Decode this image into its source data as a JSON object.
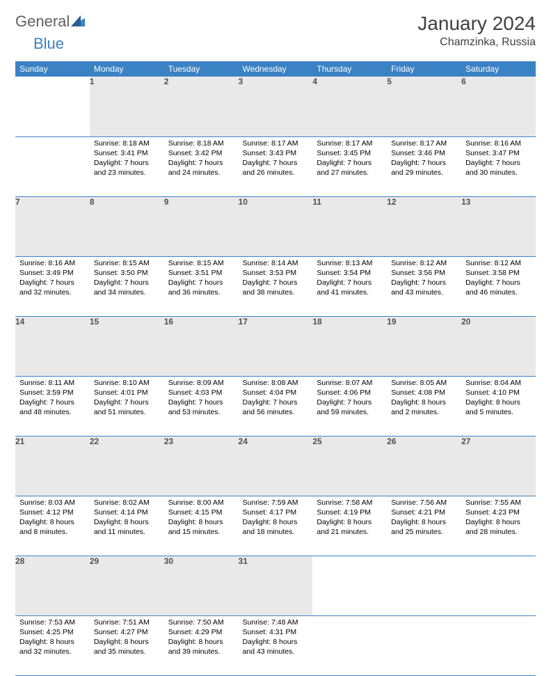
{
  "logo": {
    "word1": "General",
    "word2": "Blue"
  },
  "title": {
    "month_year": "January 2024",
    "location": "Chamzinka, Russia"
  },
  "colors": {
    "header_bg": "#3b82c4",
    "header_fg": "#ffffff",
    "daynum_bg": "#e9e9e9",
    "border": "#3b82c4",
    "logo_gray": "#606060",
    "logo_blue": "#3b82c4"
  },
  "day_headers": [
    "Sunday",
    "Monday",
    "Tuesday",
    "Wednesday",
    "Thursday",
    "Friday",
    "Saturday"
  ],
  "weeks": [
    [
      {
        "num": "",
        "sunrise": "",
        "sunset": "",
        "daylight1": "",
        "daylight2": ""
      },
      {
        "num": "1",
        "sunrise": "Sunrise: 8:18 AM",
        "sunset": "Sunset: 3:41 PM",
        "daylight1": "Daylight: 7 hours",
        "daylight2": "and 23 minutes."
      },
      {
        "num": "2",
        "sunrise": "Sunrise: 8:18 AM",
        "sunset": "Sunset: 3:42 PM",
        "daylight1": "Daylight: 7 hours",
        "daylight2": "and 24 minutes."
      },
      {
        "num": "3",
        "sunrise": "Sunrise: 8:17 AM",
        "sunset": "Sunset: 3:43 PM",
        "daylight1": "Daylight: 7 hours",
        "daylight2": "and 26 minutes."
      },
      {
        "num": "4",
        "sunrise": "Sunrise: 8:17 AM",
        "sunset": "Sunset: 3:45 PM",
        "daylight1": "Daylight: 7 hours",
        "daylight2": "and 27 minutes."
      },
      {
        "num": "5",
        "sunrise": "Sunrise: 8:17 AM",
        "sunset": "Sunset: 3:46 PM",
        "daylight1": "Daylight: 7 hours",
        "daylight2": "and 29 minutes."
      },
      {
        "num": "6",
        "sunrise": "Sunrise: 8:16 AM",
        "sunset": "Sunset: 3:47 PM",
        "daylight1": "Daylight: 7 hours",
        "daylight2": "and 30 minutes."
      }
    ],
    [
      {
        "num": "7",
        "sunrise": "Sunrise: 8:16 AM",
        "sunset": "Sunset: 3:49 PM",
        "daylight1": "Daylight: 7 hours",
        "daylight2": "and 32 minutes."
      },
      {
        "num": "8",
        "sunrise": "Sunrise: 8:15 AM",
        "sunset": "Sunset: 3:50 PM",
        "daylight1": "Daylight: 7 hours",
        "daylight2": "and 34 minutes."
      },
      {
        "num": "9",
        "sunrise": "Sunrise: 8:15 AM",
        "sunset": "Sunset: 3:51 PM",
        "daylight1": "Daylight: 7 hours",
        "daylight2": "and 36 minutes."
      },
      {
        "num": "10",
        "sunrise": "Sunrise: 8:14 AM",
        "sunset": "Sunset: 3:53 PM",
        "daylight1": "Daylight: 7 hours",
        "daylight2": "and 38 minutes."
      },
      {
        "num": "11",
        "sunrise": "Sunrise: 8:13 AM",
        "sunset": "Sunset: 3:54 PM",
        "daylight1": "Daylight: 7 hours",
        "daylight2": "and 41 minutes."
      },
      {
        "num": "12",
        "sunrise": "Sunrise: 8:12 AM",
        "sunset": "Sunset: 3:56 PM",
        "daylight1": "Daylight: 7 hours",
        "daylight2": "and 43 minutes."
      },
      {
        "num": "13",
        "sunrise": "Sunrise: 8:12 AM",
        "sunset": "Sunset: 3:58 PM",
        "daylight1": "Daylight: 7 hours",
        "daylight2": "and 46 minutes."
      }
    ],
    [
      {
        "num": "14",
        "sunrise": "Sunrise: 8:11 AM",
        "sunset": "Sunset: 3:59 PM",
        "daylight1": "Daylight: 7 hours",
        "daylight2": "and 48 minutes."
      },
      {
        "num": "15",
        "sunrise": "Sunrise: 8:10 AM",
        "sunset": "Sunset: 4:01 PM",
        "daylight1": "Daylight: 7 hours",
        "daylight2": "and 51 minutes."
      },
      {
        "num": "16",
        "sunrise": "Sunrise: 8:09 AM",
        "sunset": "Sunset: 4:03 PM",
        "daylight1": "Daylight: 7 hours",
        "daylight2": "and 53 minutes."
      },
      {
        "num": "17",
        "sunrise": "Sunrise: 8:08 AM",
        "sunset": "Sunset: 4:04 PM",
        "daylight1": "Daylight: 7 hours",
        "daylight2": "and 56 minutes."
      },
      {
        "num": "18",
        "sunrise": "Sunrise: 8:07 AM",
        "sunset": "Sunset: 4:06 PM",
        "daylight1": "Daylight: 7 hours",
        "daylight2": "and 59 minutes."
      },
      {
        "num": "19",
        "sunrise": "Sunrise: 8:05 AM",
        "sunset": "Sunset: 4:08 PM",
        "daylight1": "Daylight: 8 hours",
        "daylight2": "and 2 minutes."
      },
      {
        "num": "20",
        "sunrise": "Sunrise: 8:04 AM",
        "sunset": "Sunset: 4:10 PM",
        "daylight1": "Daylight: 8 hours",
        "daylight2": "and 5 minutes."
      }
    ],
    [
      {
        "num": "21",
        "sunrise": "Sunrise: 8:03 AM",
        "sunset": "Sunset: 4:12 PM",
        "daylight1": "Daylight: 8 hours",
        "daylight2": "and 8 minutes."
      },
      {
        "num": "22",
        "sunrise": "Sunrise: 8:02 AM",
        "sunset": "Sunset: 4:14 PM",
        "daylight1": "Daylight: 8 hours",
        "daylight2": "and 11 minutes."
      },
      {
        "num": "23",
        "sunrise": "Sunrise: 8:00 AM",
        "sunset": "Sunset: 4:15 PM",
        "daylight1": "Daylight: 8 hours",
        "daylight2": "and 15 minutes."
      },
      {
        "num": "24",
        "sunrise": "Sunrise: 7:59 AM",
        "sunset": "Sunset: 4:17 PM",
        "daylight1": "Daylight: 8 hours",
        "daylight2": "and 18 minutes."
      },
      {
        "num": "25",
        "sunrise": "Sunrise: 7:58 AM",
        "sunset": "Sunset: 4:19 PM",
        "daylight1": "Daylight: 8 hours",
        "daylight2": "and 21 minutes."
      },
      {
        "num": "26",
        "sunrise": "Sunrise: 7:56 AM",
        "sunset": "Sunset: 4:21 PM",
        "daylight1": "Daylight: 8 hours",
        "daylight2": "and 25 minutes."
      },
      {
        "num": "27",
        "sunrise": "Sunrise: 7:55 AM",
        "sunset": "Sunset: 4:23 PM",
        "daylight1": "Daylight: 8 hours",
        "daylight2": "and 28 minutes."
      }
    ],
    [
      {
        "num": "28",
        "sunrise": "Sunrise: 7:53 AM",
        "sunset": "Sunset: 4:25 PM",
        "daylight1": "Daylight: 8 hours",
        "daylight2": "and 32 minutes."
      },
      {
        "num": "29",
        "sunrise": "Sunrise: 7:51 AM",
        "sunset": "Sunset: 4:27 PM",
        "daylight1": "Daylight: 8 hours",
        "daylight2": "and 35 minutes."
      },
      {
        "num": "30",
        "sunrise": "Sunrise: 7:50 AM",
        "sunset": "Sunset: 4:29 PM",
        "daylight1": "Daylight: 8 hours",
        "daylight2": "and 39 minutes."
      },
      {
        "num": "31",
        "sunrise": "Sunrise: 7:48 AM",
        "sunset": "Sunset: 4:31 PM",
        "daylight1": "Daylight: 8 hours",
        "daylight2": "and 43 minutes."
      },
      {
        "num": "",
        "sunrise": "",
        "sunset": "",
        "daylight1": "",
        "daylight2": ""
      },
      {
        "num": "",
        "sunrise": "",
        "sunset": "",
        "daylight1": "",
        "daylight2": ""
      },
      {
        "num": "",
        "sunrise": "",
        "sunset": "",
        "daylight1": "",
        "daylight2": ""
      }
    ]
  ]
}
